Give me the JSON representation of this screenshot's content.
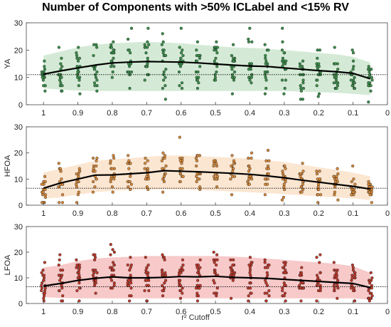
{
  "chart_data": {
    "type": "scatter",
    "title": "Number of Components with >50% ICLabel and <15% RV",
    "xlabel": "r² Cutoff",
    "x_axis_reversed": true,
    "xlim": [
      0,
      1.05
    ],
    "ylim": [
      0,
      30
    ],
    "x_ticks": [
      1,
      0.9,
      0.8,
      0.7,
      0.6,
      0.5,
      0.4,
      0.3,
      0.2,
      0.1,
      0
    ],
    "y_ticks": [
      0,
      10,
      20,
      30
    ],
    "cutoffs": [
      1,
      0.95,
      0.9,
      0.85,
      0.8,
      0.75,
      0.7,
      0.65,
      0.6,
      0.55,
      0.5,
      0.45,
      0.4,
      0.35,
      0.3,
      0.25,
      0.2,
      0.15,
      0.1,
      0.05
    ],
    "grid": false,
    "panels": [
      {
        "ylabel": "YA",
        "color_point": "#3a8f4a",
        "color_band": "#cfe8d2",
        "reference_line": 11,
        "mean": [
          11.2,
          12.4,
          13.5,
          14.5,
          15.3,
          15.6,
          15.8,
          15.7,
          15.6,
          15.3,
          14.9,
          14.5,
          14.2,
          14.0,
          13.5,
          13.0,
          12.5,
          12.1,
          11.5,
          9.5
        ],
        "band_low": [
          6.0,
          5.5,
          5.2,
          5.0,
          5.0,
          5.0,
          5.0,
          5.0,
          5.0,
          5.0,
          5.0,
          5.0,
          5.0,
          5.0,
          5.0,
          4.8,
          4.6,
          4.4,
          4.0,
          3.5
        ],
        "band_high": [
          18.0,
          19.5,
          21.0,
          22.0,
          22.5,
          22.8,
          23.0,
          22.8,
          22.5,
          22.0,
          21.5,
          21.0,
          20.8,
          20.5,
          20.0,
          19.5,
          19.0,
          18.5,
          17.5,
          15.5
        ],
        "points_per_cutoff": 18
      },
      {
        "ylabel": "HFOA",
        "color_point": "#d98a3a",
        "color_band": "#fbe3cc",
        "reference_line": 6.5,
        "mean": [
          6.5,
          8.5,
          10.0,
          11.5,
          11.6,
          12.0,
          12.4,
          13.2,
          13.0,
          12.8,
          12.5,
          12.2,
          11.8,
          11.2,
          10.5,
          9.6,
          8.8,
          8.0,
          7.2,
          6.2
        ],
        "band_low": [
          2.5,
          3.0,
          4.0,
          5.0,
          5.5,
          5.8,
          6.0,
          6.0,
          6.0,
          5.8,
          5.5,
          5.2,
          5.0,
          4.6,
          4.2,
          3.8,
          3.4,
          3.0,
          2.6,
          2.0
        ],
        "band_high": [
          12.5,
          14.0,
          15.5,
          17.0,
          17.5,
          18.0,
          18.5,
          19.0,
          19.0,
          18.8,
          18.5,
          18.2,
          17.8,
          17.2,
          16.5,
          15.5,
          14.5,
          13.5,
          12.5,
          11.0
        ],
        "points_per_cutoff": 16
      },
      {
        "ylabel": "LFOA",
        "color_point": "#c0392b",
        "color_band": "#f6c3c3",
        "reference_line": 6.5,
        "mean": [
          6.8,
          7.8,
          9.0,
          9.8,
          10.4,
          10.0,
          10.0,
          10.2,
          10.5,
          10.4,
          10.6,
          10.2,
          10.0,
          9.8,
          9.4,
          9.0,
          8.6,
          8.2,
          7.8,
          6.2
        ],
        "band_low": [
          2.5,
          2.2,
          2.0,
          2.0,
          2.0,
          2.0,
          2.0,
          2.0,
          2.0,
          2.0,
          2.0,
          2.0,
          2.0,
          2.0,
          2.0,
          2.0,
          2.0,
          2.0,
          2.0,
          1.5
        ],
        "band_high": [
          14.0,
          15.0,
          16.5,
          17.5,
          18.0,
          18.2,
          18.5,
          18.5,
          18.5,
          18.5,
          18.5,
          18.3,
          18.0,
          17.5,
          17.0,
          16.5,
          16.0,
          15.5,
          14.5,
          12.0
        ],
        "points_per_cutoff": 20
      }
    ]
  }
}
